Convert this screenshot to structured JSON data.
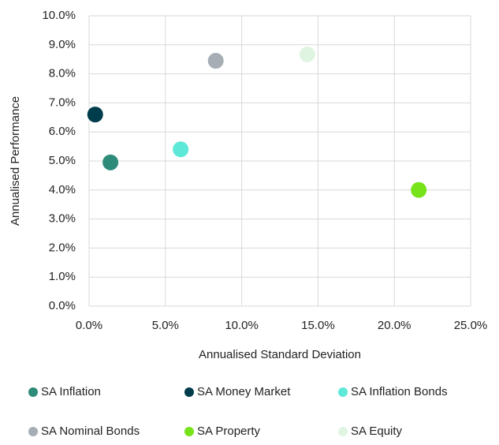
{
  "chart_data": {
    "type": "scatter",
    "xlabel": "Annualised Standard Deviation",
    "ylabel": "Annualised Performance",
    "series": [
      {
        "name": "SA Inflation",
        "color": "#2e8b7a",
        "x": [
          1.4
        ],
        "values": [
          4.95
        ]
      },
      {
        "name": "SA Money Market",
        "color": "#003d4c",
        "x": [
          0.4
        ],
        "values": [
          6.6
        ]
      },
      {
        "name": "SA Inflation Bonds",
        "color": "#5ee8d8",
        "x": [
          6.0
        ],
        "values": [
          5.4
        ]
      },
      {
        "name": "SA Nominal Bonds",
        "color": "#a6adb4",
        "x": [
          8.3
        ],
        "values": [
          8.45
        ]
      },
      {
        "name": "SA Property",
        "color": "#77e31a",
        "x": [
          21.6
        ],
        "values": [
          4.0
        ]
      },
      {
        "name": "SA Equity",
        "color": "#dff5e2",
        "x": [
          14.3
        ],
        "values": [
          8.67
        ]
      }
    ],
    "xlim": [
      0,
      25
    ],
    "xticks": [
      {
        "value": 0,
        "label": "0.0%"
      },
      {
        "value": 5,
        "label": "5.0%"
      },
      {
        "value": 10,
        "label": "10.0%"
      },
      {
        "value": 15,
        "label": "15.0%"
      },
      {
        "value": 20,
        "label": "20.0%"
      },
      {
        "value": 25,
        "label": "25.0%"
      }
    ],
    "ylim": [
      0,
      10
    ],
    "yticks": [
      {
        "value": 0,
        "label": "0.0%"
      },
      {
        "value": 1,
        "label": "1.0%"
      },
      {
        "value": 2,
        "label": "2.0%"
      },
      {
        "value": 3,
        "label": "3.0%"
      },
      {
        "value": 4,
        "label": "4.0%"
      },
      {
        "value": 5,
        "label": "5.0%"
      },
      {
        "value": 6,
        "label": "6.0%"
      },
      {
        "value": 7,
        "label": "7.0%"
      },
      {
        "value": 8,
        "label": "8.0%"
      },
      {
        "value": 9,
        "label": "9.0%"
      },
      {
        "value": 10,
        "label": "10.0%"
      }
    ],
    "grid": true,
    "legend": "bottom"
  }
}
